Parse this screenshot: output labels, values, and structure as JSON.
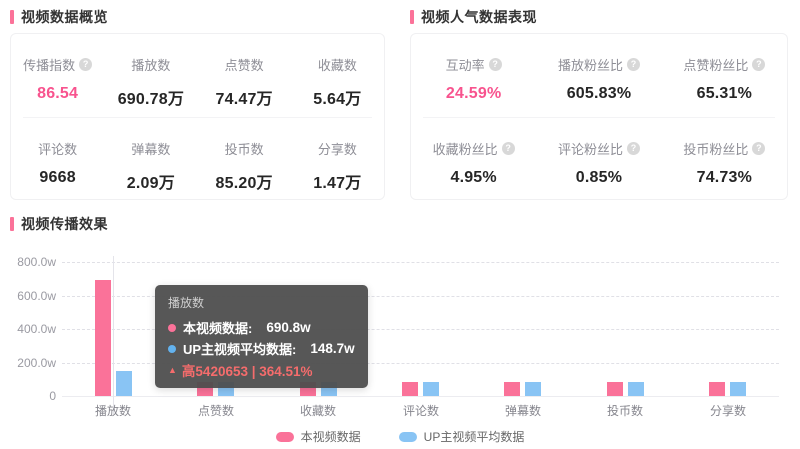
{
  "colors": {
    "accent_pink": "#fb7299",
    "pink_text": "#f8538e",
    "bar_pink": "#fa7299",
    "bar_blue": "#89c4f4",
    "tooltip_pink_dot": "#fb7299",
    "tooltip_blue_dot": "#63b2ee",
    "delta_red": "#f56c6c"
  },
  "icons": {
    "help": "?",
    "up_triangle": "▲"
  },
  "sections": {
    "overview": {
      "title": "视频数据概览",
      "cols": 4,
      "metrics": [
        {
          "label": "传播指数",
          "value": "86.54",
          "pink": true,
          "help": true
        },
        {
          "label": "播放数",
          "value": "690.78万"
        },
        {
          "label": "点赞数",
          "value": "74.47万"
        },
        {
          "label": "收藏数",
          "value": "5.64万"
        },
        {
          "label": "评论数",
          "value": "9668"
        },
        {
          "label": "弹幕数",
          "value": "2.09万"
        },
        {
          "label": "投币数",
          "value": "85.20万"
        },
        {
          "label": "分享数",
          "value": "1.47万"
        }
      ]
    },
    "popularity": {
      "title": "视频人气数据表现",
      "cols": 3,
      "metrics": [
        {
          "label": "互动率",
          "value": "24.59%",
          "pink": true,
          "help": true
        },
        {
          "label": "播放粉丝比",
          "value": "605.83%",
          "help": true
        },
        {
          "label": "点赞粉丝比",
          "value": "65.31%",
          "help": true
        },
        {
          "label": "收藏粉丝比",
          "value": "4.95%",
          "help": true
        },
        {
          "label": "评论粉丝比",
          "value": "0.85%",
          "help": true
        },
        {
          "label": "投币粉丝比",
          "value": "74.73%",
          "help": true
        }
      ]
    },
    "spread": {
      "title": "视频传播效果"
    }
  },
  "chart_data": {
    "type": "bar",
    "title": "视频传播效果",
    "categories": [
      "播放数",
      "点赞数",
      "收藏数",
      "评论数",
      "弹幕数",
      "投币数",
      "分享数"
    ],
    "unit": "万 (w)",
    "series": [
      {
        "name": "本视频数据",
        "color": "#fa7299",
        "values_w": [
          690.8,
          74.47,
          5.64,
          0.9668,
          2.09,
          85.2,
          1.47
        ]
      },
      {
        "name": "UP主视频平均数据",
        "color": "#89c4f4",
        "values_w": [
          148.7,
          null,
          null,
          null,
          null,
          null,
          null
        ]
      }
    ],
    "display_heights_w": [
      [
        690.8,
        84,
        84,
        84,
        84,
        84,
        84
      ],
      [
        148.7,
        84,
        84,
        84,
        84,
        84,
        84
      ]
    ],
    "y_ticks": [
      "800.0w",
      "600.0w",
      "400.0w",
      "200.0w",
      "0"
    ],
    "y_tick_values": [
      800,
      600,
      400,
      200,
      0
    ],
    "ylim": [
      0,
      800
    ],
    "grid": "dashed horizontal",
    "legend_position": "bottom center",
    "hover_category_index": 0
  },
  "tooltip": {
    "title": "播放数",
    "rows": [
      {
        "label": "本视频数据:",
        "value": "690.8w",
        "dot": "#fb7299"
      },
      {
        "label": "UP主视频平均数据:",
        "value": "148.7w",
        "dot": "#63b2ee"
      }
    ],
    "delta": "高5420653 | 364.51%"
  },
  "legend": [
    {
      "label": "本视频数据",
      "color": "#fa7299"
    },
    {
      "label": "UP主视频平均数据",
      "color": "#89c4f4"
    }
  ]
}
